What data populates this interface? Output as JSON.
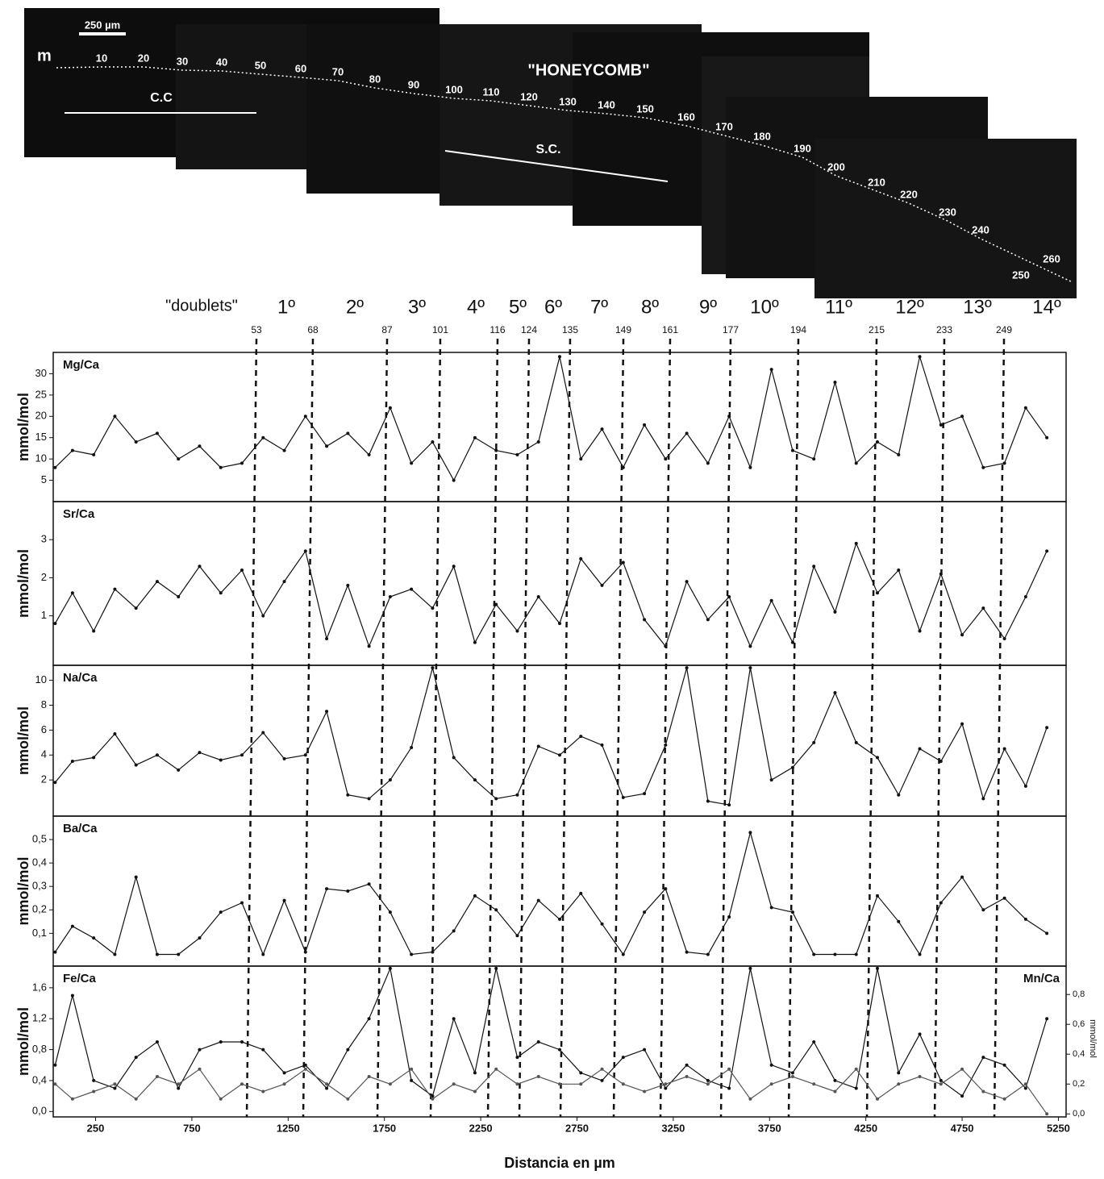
{
  "micrograph": {
    "m": "m",
    "scale_bar": "250 µm",
    "title": "\"HONEYCOMB\"",
    "cc": "C.C",
    "sc": "S.C.",
    "counts": [
      "10",
      "20",
      "30",
      "40",
      "50",
      "60",
      "70",
      "80",
      "90",
      "100",
      "110",
      "120",
      "130",
      "140",
      "150",
      "160",
      "170",
      "180",
      "190",
      "200",
      "210",
      "220",
      "230",
      "240",
      "250",
      "260"
    ]
  },
  "doublets": {
    "label": "\"doublets\"",
    "ordinals": [
      "1º",
      "2º",
      "3º",
      "4º",
      "5º",
      "6º",
      "7º",
      "8º",
      "9º",
      "10º",
      "11º",
      "12º",
      "13º",
      "14º"
    ],
    "markers": [
      "53",
      "68",
      "87",
      "101",
      "116",
      "124",
      "135",
      "149",
      "161",
      "177",
      "194",
      "215",
      "233",
      "249"
    ]
  },
  "chart_data": [
    {
      "type": "line",
      "y_label": "mmol/mol",
      "xlim": [
        30,
        5290
      ],
      "ylim": [
        0,
        35
      ],
      "yticks": [
        5,
        10,
        15,
        20,
        25,
        30
      ],
      "x": [
        40,
        130,
        240,
        350,
        460,
        570,
        680,
        790,
        900,
        1010,
        1120,
        1230,
        1340,
        1450,
        1560,
        1670,
        1780,
        1890,
        2000,
        2110,
        2220,
        2330,
        2440,
        2550,
        2660,
        2770,
        2880,
        2990,
        3100,
        3210,
        3320,
        3430,
        3540,
        3650,
        3760,
        3870,
        3980,
        4090,
        4200,
        4310,
        4420,
        4530,
        4640,
        4750,
        4860,
        4970,
        5080,
        5190
      ],
      "series": [
        {
          "name": "Mg/Ca",
          "color": "#111111",
          "values": [
            8,
            12,
            11,
            20,
            14,
            16,
            10,
            13,
            8,
            9,
            15,
            12,
            20,
            13,
            16,
            11,
            22,
            9,
            14,
            5,
            15,
            12,
            11,
            14,
            34,
            10,
            17,
            8,
            18,
            10,
            16,
            9,
            20,
            8,
            31,
            12,
            10,
            28,
            9,
            14,
            11,
            34,
            18,
            20,
            8,
            9,
            22,
            15
          ]
        }
      ]
    },
    {
      "type": "line",
      "y_label": "mmol/mol",
      "xlim": [
        30,
        5290
      ],
      "ylim": [
        -0.3,
        4
      ],
      "yticks": [
        1,
        2,
        3
      ],
      "x": [
        40,
        130,
        240,
        350,
        460,
        570,
        680,
        790,
        900,
        1010,
        1120,
        1230,
        1340,
        1450,
        1560,
        1670,
        1780,
        1890,
        2000,
        2110,
        2220,
        2330,
        2440,
        2550,
        2660,
        2770,
        2880,
        2990,
        3100,
        3210,
        3320,
        3430,
        3540,
        3650,
        3760,
        3870,
        3980,
        4090,
        4200,
        4310,
        4420,
        4530,
        4640,
        4750,
        4860,
        4970,
        5080,
        5190
      ],
      "series": [
        {
          "name": "Sr/Ca",
          "color": "#111111",
          "values": [
            0.8,
            1.6,
            0.6,
            1.7,
            1.2,
            1.9,
            1.5,
            2.3,
            1.6,
            2.2,
            1.0,
            1.9,
            2.7,
            0.4,
            1.8,
            0.2,
            1.5,
            1.7,
            1.2,
            2.3,
            0.3,
            1.3,
            0.6,
            1.5,
            0.8,
            2.5,
            1.8,
            2.4,
            0.9,
            0.2,
            1.9,
            0.9,
            1.5,
            0.2,
            1.4,
            0.3,
            2.3,
            1.1,
            2.9,
            1.6,
            2.2,
            0.6,
            2.1,
            0.5,
            1.2,
            0.4,
            1.5,
            2.7
          ]
        }
      ]
    },
    {
      "type": "line",
      "y_label": "mmol/mol",
      "xlim": [
        30,
        5290
      ],
      "ylim": [
        -0.9,
        11.2
      ],
      "yticks": [
        2,
        4,
        6,
        8,
        10
      ],
      "x": [
        40,
        130,
        240,
        350,
        460,
        570,
        680,
        790,
        900,
        1010,
        1120,
        1230,
        1340,
        1450,
        1560,
        1670,
        1780,
        1890,
        2000,
        2110,
        2220,
        2330,
        2440,
        2550,
        2660,
        2770,
        2880,
        2990,
        3100,
        3210,
        3320,
        3430,
        3540,
        3650,
        3760,
        3870,
        3980,
        4090,
        4200,
        4310,
        4420,
        4530,
        4640,
        4750,
        4860,
        4970,
        5080,
        5190
      ],
      "series": [
        {
          "name": "Na/Ca",
          "color": "#111111",
          "values": [
            1.8,
            3.5,
            3.8,
            5.7,
            3.2,
            4.0,
            2.8,
            4.2,
            3.6,
            4.0,
            5.8,
            3.7,
            4.0,
            7.5,
            0.8,
            0.5,
            2.0,
            4.6,
            11.0,
            3.8,
            2.0,
            0.5,
            0.8,
            4.7,
            4.0,
            5.5,
            4.8,
            0.6,
            0.9,
            4.8,
            11.0,
            0.3,
            0.0,
            11.0,
            2.0,
            3.0,
            5.0,
            9.0,
            5.0,
            3.8,
            0.8,
            4.5,
            3.5,
            6.5,
            0.5,
            4.5,
            1.5,
            6.2
          ]
        }
      ]
    },
    {
      "type": "line",
      "y_label": "mmol/mol",
      "xlim": [
        30,
        5290
      ],
      "ylim": [
        -0.04,
        0.6
      ],
      "yticks": [
        {
          "value": 0.1,
          "label": "0,1"
        },
        {
          "value": 0.2,
          "label": "0,2"
        },
        {
          "value": 0.3,
          "label": "0,3"
        },
        {
          "value": 0.4,
          "label": "0,4"
        },
        {
          "value": 0.5,
          "label": "0,5"
        }
      ],
      "x": [
        40,
        130,
        240,
        350,
        460,
        570,
        680,
        790,
        900,
        1010,
        1120,
        1230,
        1340,
        1450,
        1560,
        1670,
        1780,
        1890,
        2000,
        2110,
        2220,
        2330,
        2440,
        2550,
        2660,
        2770,
        2880,
        2990,
        3100,
        3210,
        3320,
        3430,
        3540,
        3650,
        3760,
        3870,
        3980,
        4090,
        4200,
        4310,
        4420,
        4530,
        4640,
        4750,
        4860,
        4970,
        5080,
        5190
      ],
      "series": [
        {
          "name": "Ba/Ca",
          "color": "#111111",
          "values": [
            0.02,
            0.13,
            0.08,
            0.01,
            0.34,
            0.01,
            0.01,
            0.08,
            0.19,
            0.23,
            0.01,
            0.24,
            0.02,
            0.29,
            0.28,
            0.31,
            0.19,
            0.01,
            0.02,
            0.11,
            0.26,
            0.2,
            0.09,
            0.24,
            0.16,
            0.27,
            0.14,
            0.01,
            0.19,
            0.29,
            0.02,
            0.01,
            0.17,
            0.53,
            0.21,
            0.19,
            0.01,
            0.01,
            0.01,
            0.26,
            0.15,
            0.01,
            0.23,
            0.34,
            0.2,
            0.25,
            0.16,
            0.1
          ]
        }
      ]
    },
    {
      "type": "line",
      "y_label": "mmol/mol",
      "y2_label": "mmol/mol",
      "x_label": "Distancia en µm",
      "xlim": [
        30,
        5290
      ],
      "xticks": [
        250,
        750,
        1250,
        1750,
        2250,
        2750,
        3250,
        3750,
        4250,
        4750,
        5250
      ],
      "ylim": [
        -0.07,
        1.88
      ],
      "yticks": [
        {
          "value": 0,
          "label": "0,0"
        },
        {
          "value": 0.4,
          "label": "0,4"
        },
        {
          "value": 0.8,
          "label": "0,8"
        },
        {
          "value": 1.2,
          "label": "1,2"
        },
        {
          "value": 1.6,
          "label": "1,6"
        }
      ],
      "y2lim": [
        -0.02,
        0.99
      ],
      "y2ticks": [
        {
          "value": 0,
          "label": "0,0"
        },
        {
          "value": 0.2,
          "label": "0,2"
        },
        {
          "value": 0.4,
          "label": "0,4"
        },
        {
          "value": 0.6,
          "label": "0,6"
        },
        {
          "value": 0.8,
          "label": "0,8"
        }
      ],
      "x": [
        40,
        130,
        240,
        350,
        460,
        570,
        680,
        790,
        900,
        1010,
        1120,
        1230,
        1340,
        1450,
        1560,
        1670,
        1780,
        1890,
        2000,
        2110,
        2220,
        2330,
        2440,
        2550,
        2660,
        2770,
        2880,
        2990,
        3100,
        3210,
        3320,
        3430,
        3540,
        3650,
        3760,
        3870,
        3980,
        4090,
        4200,
        4310,
        4420,
        4530,
        4640,
        4750,
        4860,
        4970,
        5080,
        5190
      ],
      "series": [
        {
          "name": "Fe/Ca",
          "color": "#111111",
          "values": [
            0.6,
            1.5,
            0.4,
            0.3,
            0.7,
            0.9,
            0.3,
            0.8,
            0.9,
            0.9,
            0.8,
            0.5,
            0.6,
            0.3,
            0.8,
            1.2,
            1.85,
            0.4,
            0.2,
            1.2,
            0.5,
            1.85,
            0.7,
            0.9,
            0.8,
            0.5,
            0.4,
            0.7,
            0.8,
            0.3,
            0.6,
            0.4,
            0.3,
            1.85,
            0.6,
            0.5,
            0.9,
            0.4,
            0.3,
            1.85,
            0.5,
            1.0,
            0.4,
            0.2,
            0.7,
            0.6,
            0.3,
            1.2
          ]
        },
        {
          "name": "Mn/Ca",
          "color": "#555555",
          "axis": "y2",
          "values": [
            0.2,
            0.1,
            0.15,
            0.2,
            0.1,
            0.25,
            0.2,
            0.3,
            0.1,
            0.2,
            0.15,
            0.2,
            0.3,
            0.2,
            0.1,
            0.25,
            0.2,
            0.3,
            0.1,
            0.2,
            0.15,
            0.3,
            0.2,
            0.25,
            0.2,
            0.2,
            0.3,
            0.2,
            0.15,
            0.2,
            0.25,
            0.2,
            0.3,
            0.1,
            0.2,
            0.25,
            0.2,
            0.15,
            0.3,
            0.1,
            0.2,
            0.25,
            0.2,
            0.3,
            0.15,
            0.1,
            0.2,
            0.0
          ]
        }
      ]
    }
  ]
}
